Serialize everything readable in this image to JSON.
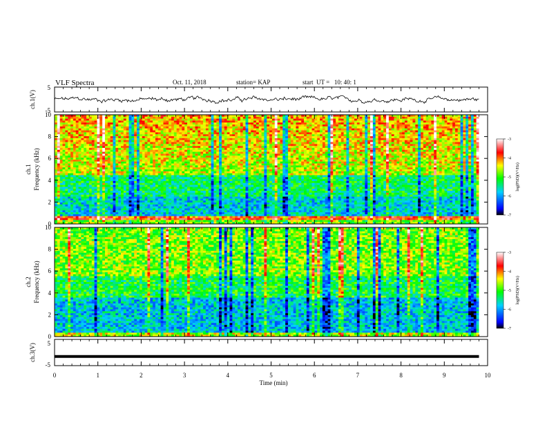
{
  "header": {
    "title": "VLF Spectra",
    "date": "Oct. 11, 2018",
    "station": "station= KAP",
    "start": "start  UT =   10: 40: 1"
  },
  "chart_data": [
    {
      "id": "ch1-waveform",
      "type": "line",
      "ylabel": "ch.1(V)",
      "yticks": [
        "5",
        "-5"
      ],
      "ylim": [
        -5,
        5
      ],
      "xlim": [
        0,
        10
      ],
      "data_extent_min": 9.8,
      "signal_range_v": [
        -1.5,
        1.5
      ]
    },
    {
      "id": "ch1-spectrogram",
      "type": "heatmap",
      "ylabel_line1": "ch.1",
      "ylabel_line2": "Frequency (kHz)",
      "yticks": [
        "0",
        "2",
        "4",
        "6",
        "8",
        "10"
      ],
      "ylim_khz": [
        0,
        10
      ],
      "xlim": [
        0,
        10
      ],
      "data_extent_min": 9.8,
      "colorbar": {
        "label": "log(PSD)(V²/Hz)",
        "ticks": [
          "-3",
          "-4",
          "-5",
          "-6",
          "-7"
        ],
        "range": [
          -7,
          -3
        ],
        "colormap": [
          "#000000",
          "#0000ff",
          "#00d0ff",
          "#00ff00",
          "#ffff00",
          "#ff0000",
          "#ffffff"
        ]
      }
    },
    {
      "id": "ch2-spectrogram",
      "type": "heatmap",
      "ylabel_line1": "ch.2",
      "ylabel_line2": "Frequency (kHz)",
      "yticks": [
        "0",
        "2",
        "4",
        "6",
        "8",
        "10"
      ],
      "ylim_khz": [
        0,
        10
      ],
      "xlim": [
        0,
        10
      ],
      "data_extent_min": 9.8,
      "colorbar": {
        "label": "log(PSD)(V²/Hz)",
        "ticks": [
          "-3",
          "-4",
          "-5",
          "-6",
          "-7"
        ],
        "range": [
          -7,
          -3
        ]
      }
    },
    {
      "id": "ch3-waveform",
      "type": "line",
      "ylabel": "ch.3(V)",
      "yticks": [
        "5",
        "-5"
      ],
      "ylim": [
        -5,
        5
      ],
      "xlim": [
        0,
        10
      ],
      "data_extent_min": 9.8,
      "level_v": -1.5
    }
  ],
  "xaxis": {
    "label": "Time (min)",
    "ticks": [
      "0",
      "1",
      "2",
      "3",
      "4",
      "5",
      "6",
      "7",
      "8",
      "9",
      "10"
    ]
  }
}
